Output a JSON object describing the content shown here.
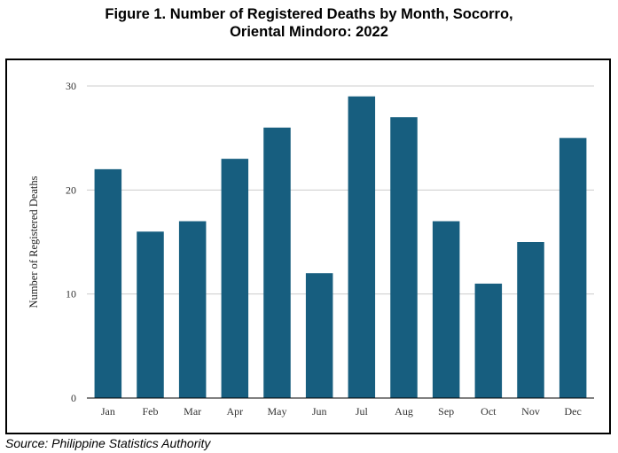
{
  "title_lines": [
    "Figure 1. Number of Registered Deaths by Month, Socorro,",
    "Oriental Mindoro: 2022"
  ],
  "source": "Source: Philippine Statistics Authority",
  "colors": {
    "bar": "#175e7f",
    "grid": "#cccccc",
    "axis": "#000000"
  },
  "chart_data": {
    "type": "bar",
    "title": "Figure 1. Number of Registered Deaths by Month, Socorro, Oriental Mindoro: 2022",
    "xlabel": "",
    "ylabel": "Number of Registered Deaths",
    "categories": [
      "Jan",
      "Feb",
      "Mar",
      "Apr",
      "May",
      "Jun",
      "Jul",
      "Aug",
      "Sep",
      "Oct",
      "Nov",
      "Dec"
    ],
    "values": [
      22,
      16,
      17,
      23,
      26,
      12,
      29,
      27,
      17,
      11,
      15,
      25
    ],
    "ylim": [
      0,
      30
    ],
    "yticks": [
      "0",
      "10",
      "20",
      "30"
    ],
    "grid": true,
    "legend": false
  }
}
